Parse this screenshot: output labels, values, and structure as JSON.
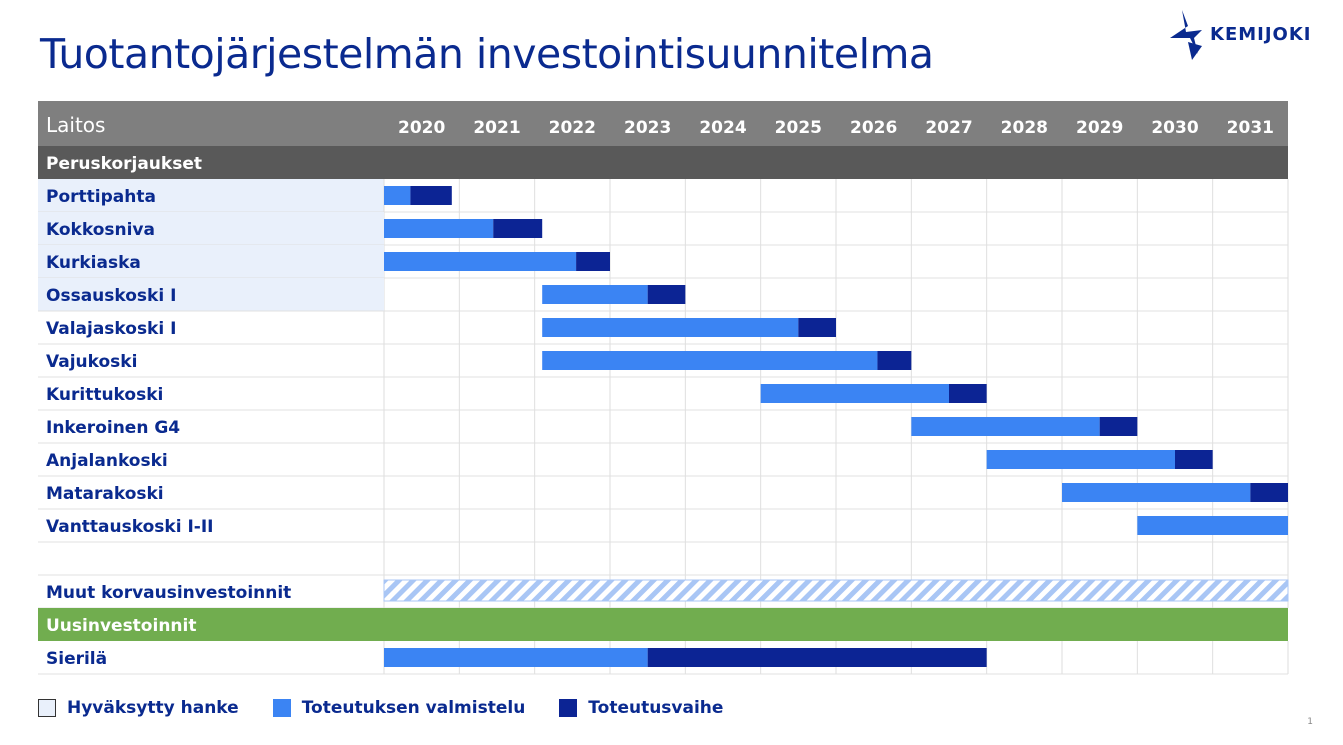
{
  "title": "Tuotantojärjestelmän investointisuunnitelma",
  "logo_text": "KEMIJOKI",
  "page_number": "1",
  "colors": {
    "approved": "#e9f0fb",
    "preparation": "#3b84f3",
    "implementation": "#0c2494",
    "header_bg": "#7f7f7f",
    "section_bg": "#595959",
    "new_section_bg": "#71ad4f",
    "text": "#0a2a8f"
  },
  "chart_data": {
    "type": "gantt",
    "column_header": "Laitos",
    "years": [
      "2020",
      "2021",
      "2022",
      "2023",
      "2024",
      "2025",
      "2026",
      "2027",
      "2028",
      "2029",
      "2030",
      "2031"
    ],
    "sections": [
      {
        "name": "Peruskorjaukset",
        "rows": [
          {
            "label": "Porttipahta",
            "approved": true,
            "preparation": [
              2020.0,
              2020.35
            ],
            "implementation": [
              2020.35,
              2020.9
            ]
          },
          {
            "label": "Kokkosniva",
            "approved": true,
            "preparation": [
              2020.0,
              2021.45
            ],
            "implementation": [
              2021.45,
              2022.1
            ]
          },
          {
            "label": "Kurkiaska",
            "approved": true,
            "preparation": [
              2020.0,
              2022.55
            ],
            "implementation": [
              2022.55,
              2023.0
            ]
          },
          {
            "label": "Ossauskoski I",
            "approved": true,
            "preparation": [
              2022.1,
              2023.5
            ],
            "implementation": [
              2023.5,
              2024.0
            ]
          },
          {
            "label": "Valajaskoski I",
            "approved": false,
            "preparation": [
              2022.1,
              2025.5
            ],
            "implementation": [
              2025.5,
              2026.0
            ]
          },
          {
            "label": "Vajukoski",
            "approved": false,
            "preparation": [
              2022.1,
              2026.55
            ],
            "implementation": [
              2026.55,
              2027.0
            ]
          },
          {
            "label": "Kurittukoski",
            "approved": false,
            "preparation": [
              2025.0,
              2027.5
            ],
            "implementation": [
              2027.5,
              2028.0
            ]
          },
          {
            "label": "Inkeroinen G4",
            "approved": false,
            "preparation": [
              2027.0,
              2029.5
            ],
            "implementation": [
              2029.5,
              2030.0
            ]
          },
          {
            "label": "Anjalankoski",
            "approved": false,
            "preparation": [
              2028.0,
              2030.5
            ],
            "implementation": [
              2030.5,
              2031.0
            ]
          },
          {
            "label": "Matarakoski",
            "approved": false,
            "preparation": [
              2029.0,
              2031.5
            ],
            "implementation": [
              2031.5,
              2032.0
            ]
          },
          {
            "label": "Vanttauskoski I-II",
            "approved": false,
            "preparation": [
              2030.0,
              2032.0
            ],
            "implementation": null
          },
          {
            "label": "",
            "approved": false,
            "preparation": null,
            "implementation": null
          },
          {
            "label": "Muut korvausinvestoinnit",
            "approved": false,
            "ongoing": [
              2020.0,
              2032.0
            ],
            "preparation": null,
            "implementation": null
          }
        ]
      },
      {
        "name": "Uusinvestoinnit",
        "rows": [
          {
            "label": "Sierilä",
            "approved": false,
            "preparation": [
              2020.0,
              2023.5
            ],
            "implementation": [
              2023.5,
              2028.0
            ]
          }
        ]
      }
    ],
    "legend": [
      {
        "label": "Hyväksytty hanke",
        "key": "approved"
      },
      {
        "label": "Toteutuksen valmistelu",
        "key": "preparation"
      },
      {
        "label": "Toteutusvaihe",
        "key": "implementation"
      }
    ],
    "grid": true,
    "legend_position": "bottom-left"
  }
}
